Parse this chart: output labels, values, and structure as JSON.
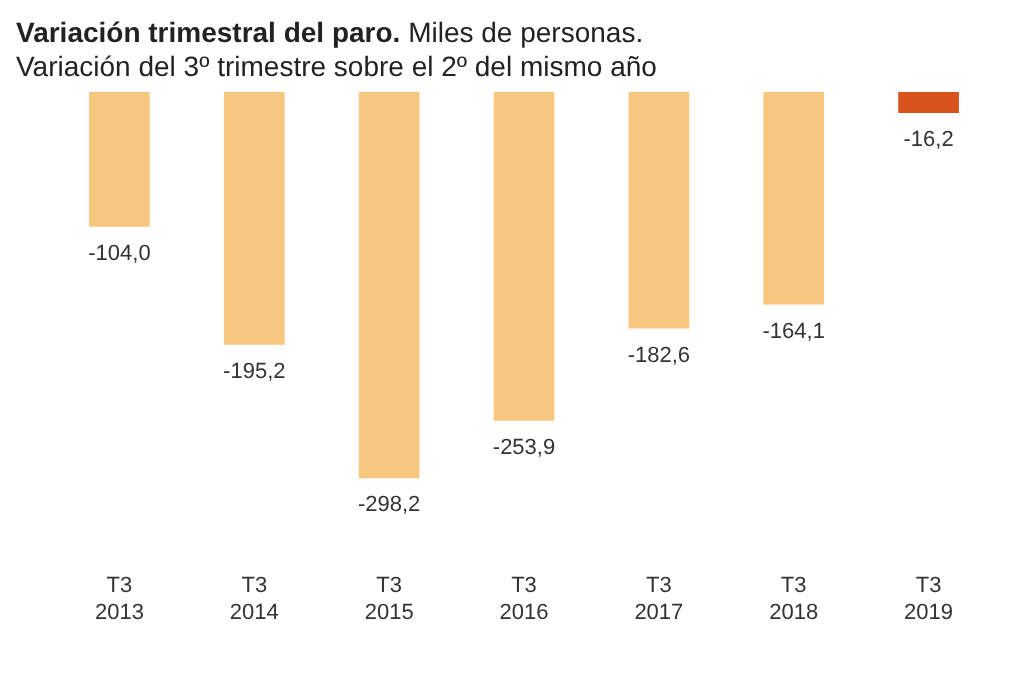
{
  "chart_data": {
    "type": "bar",
    "title": "Variación trimestral del paro.",
    "subtitle": "Miles de personas.",
    "annotations": [
      "Variación del 3º trimestre sobre el 2º del mismo año"
    ],
    "categories": [
      "T3 2013",
      "T3 2014",
      "T3 2015",
      "T3 2016",
      "T3 2017",
      "T3 2018",
      "T3 2019"
    ],
    "values": [
      -104.0,
      -195.2,
      -298.2,
      -253.9,
      -182.6,
      -164.1,
      -16.2
    ],
    "colors": [
      "#f7c77f",
      "#f7c77f",
      "#f7c77f",
      "#f7c77f",
      "#f7c77f",
      "#f7c77f",
      "#d9531e"
    ],
    "value_labels": [
      "-104,0",
      "-195,2",
      "-298,2",
      "-253,9",
      "-182,6",
      "-164,1",
      "-16,2"
    ],
    "relative": false,
    "grid": false,
    "legend": false
  }
}
